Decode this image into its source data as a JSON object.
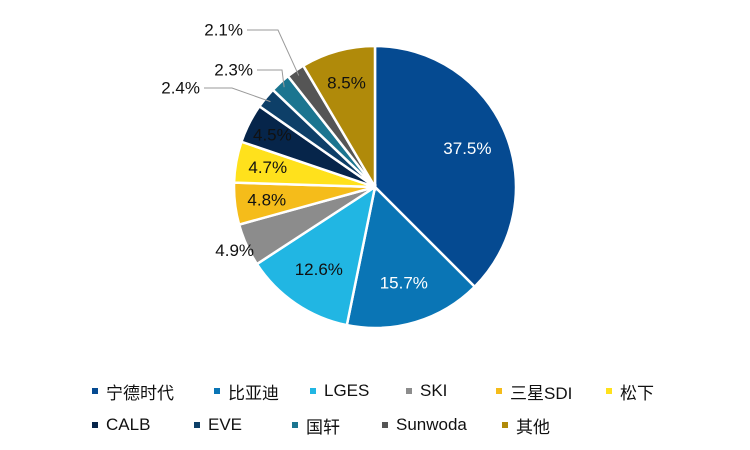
{
  "chart_data": {
    "type": "pie",
    "slices": [
      {
        "label": "宁德时代",
        "value": 37.5,
        "display": "37.5%",
        "color": "#054A91",
        "text_color": "#ffffff"
      },
      {
        "label": "比亚迪",
        "value": 15.7,
        "display": "15.7%",
        "color": "#0A75B5",
        "text_color": "#ffffff"
      },
      {
        "label": "LGES",
        "value": 12.6,
        "display": "12.6%",
        "color": "#21B6E3",
        "text_color": "#111111"
      },
      {
        "label": "SKI",
        "value": 4.9,
        "display": "4.9%",
        "color": "#8C8C8C",
        "text_color": "#111111"
      },
      {
        "label": "三星SDI",
        "value": 4.8,
        "display": "4.8%",
        "color": "#F5BC1A",
        "text_color": "#111111"
      },
      {
        "label": "松下",
        "value": 4.7,
        "display": "4.7%",
        "color": "#FFE11C",
        "text_color": "#111111"
      },
      {
        "label": "CALB",
        "value": 4.5,
        "display": "4.5%",
        "color": "#06254A",
        "text_color": "#111111"
      },
      {
        "label": "EVE",
        "value": 2.4,
        "display": "2.4%",
        "color": "#0D3F68",
        "text_color": "#111111"
      },
      {
        "label": "国轩",
        "value": 2.3,
        "display": "2.3%",
        "color": "#1B7590",
        "text_color": "#111111"
      },
      {
        "label": "Sunwoda",
        "value": 2.1,
        "display": "2.1%",
        "color": "#555555",
        "text_color": "#111111"
      },
      {
        "label": "其他",
        "value": 8.5,
        "display": "8.5%",
        "color": "#B08A0A",
        "text_color": "#111111"
      }
    ],
    "legend_position": "bottom"
  },
  "legend": {
    "rows": [
      [
        {
          "label": "宁德时代",
          "color": "#054A91"
        },
        {
          "label": "比亚迪",
          "color": "#0A75B5"
        },
        {
          "label": "LGES",
          "color": "#21B6E3"
        },
        {
          "label": "SKI",
          "color": "#8C8C8C"
        },
        {
          "label": "三星SDI",
          "color": "#F5BC1A"
        },
        {
          "label": "松下",
          "color": "#FFE11C"
        }
      ],
      [
        {
          "label": "CALB",
          "color": "#06254A"
        },
        {
          "label": "EVE",
          "color": "#0D3F68"
        },
        {
          "label": "国轩",
          "color": "#1B7590"
        },
        {
          "label": "Sunwoda",
          "color": "#555555"
        },
        {
          "label": "其他",
          "color": "#B08A0A"
        }
      ]
    ]
  }
}
